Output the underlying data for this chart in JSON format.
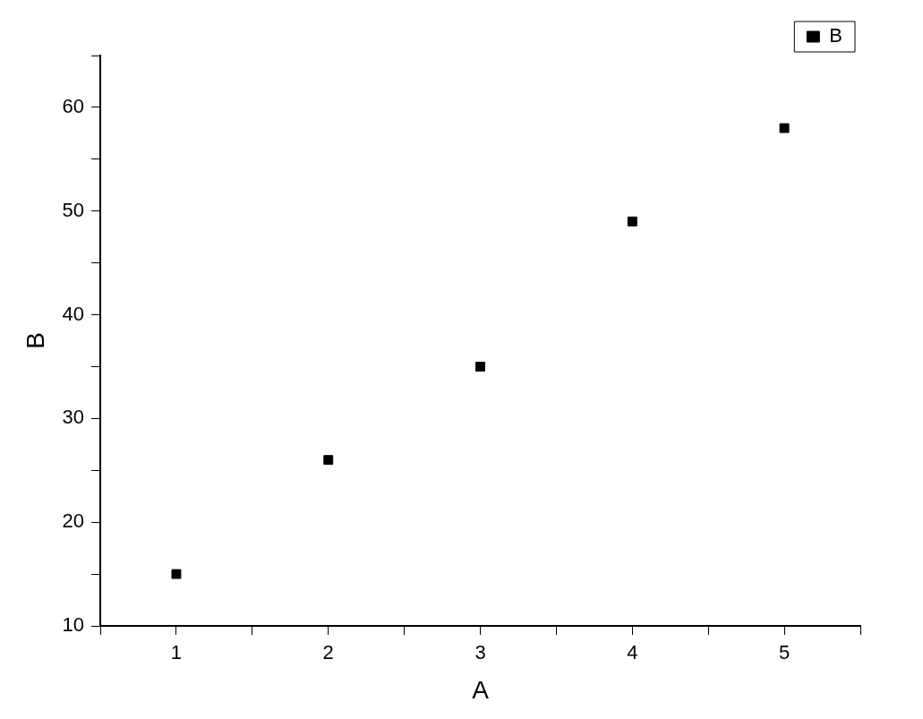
{
  "chart_data": {
    "type": "scatter",
    "xlabel": "A",
    "ylabel": "B",
    "x": [
      1,
      2,
      3,
      4,
      5
    ],
    "series": [
      {
        "name": "B",
        "color": "#000000",
        "values": [
          15,
          26,
          35,
          49,
          58
        ]
      }
    ],
    "xlim": [
      0.5,
      5.5
    ],
    "xticks": [
      {
        "value": 0.5,
        "label": null
      },
      1,
      {
        "value": 1.5,
        "label": null
      },
      2,
      {
        "value": 2.5,
        "label": null
      },
      3,
      {
        "value": 3.5,
        "label": null
      },
      4,
      {
        "value": 4.5,
        "label": null
      },
      5,
      {
        "value": 5.5,
        "label": null
      }
    ],
    "ylim": [
      10,
      65
    ],
    "yticks": [
      10,
      {
        "value": 15,
        "label": null
      },
      20,
      {
        "value": 25,
        "label": null
      },
      30,
      {
        "value": 35,
        "label": null
      },
      40,
      {
        "value": 45,
        "label": null
      },
      50,
      {
        "value": 55,
        "label": null
      },
      60,
      {
        "value": 65,
        "label": null
      }
    ],
    "grid": false,
    "legend": "top right",
    "marker": "square"
  }
}
